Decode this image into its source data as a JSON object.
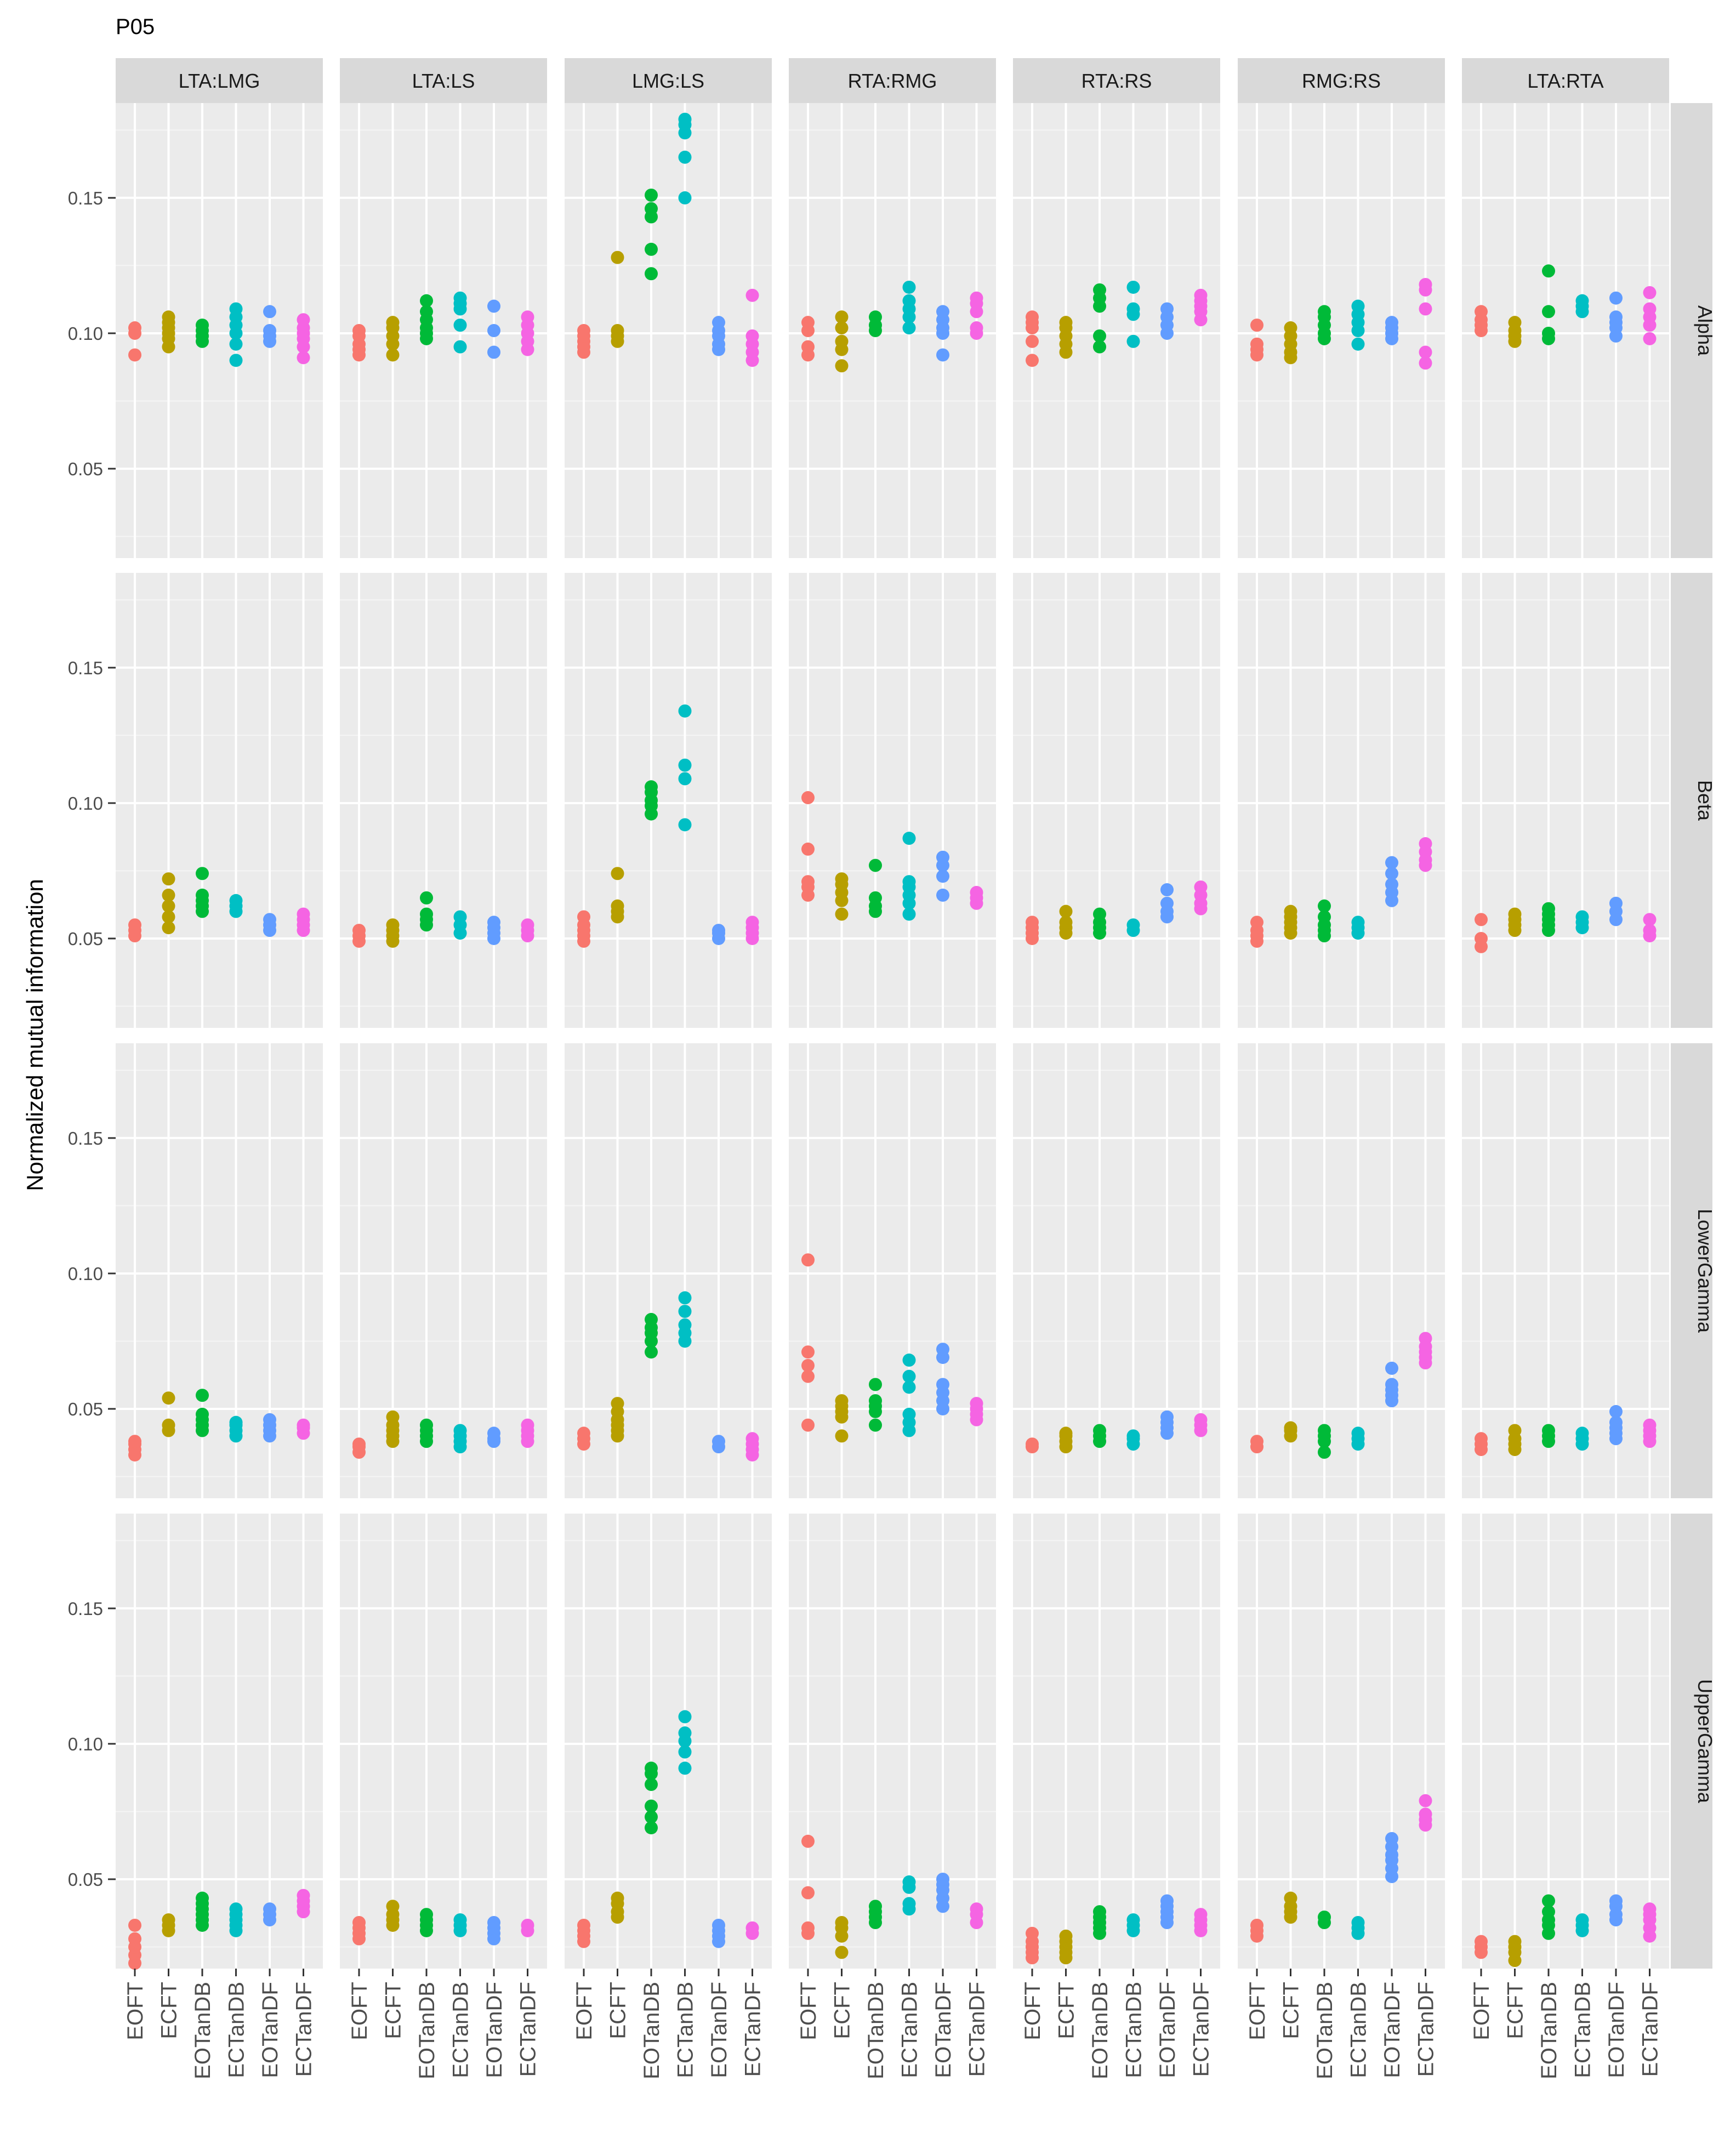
{
  "title": "P05",
  "ylabel": "Normalized mutual information",
  "chart_data": {
    "type": "scatter",
    "title": "P05",
    "xlabel": "",
    "ylabel": "Normalized mutual information",
    "ylim": [
      0.017,
      0.185
    ],
    "y_ticks": [
      "0.05",
      "0.10",
      "0.15"
    ],
    "grid": true,
    "legend": "none",
    "categories": [
      "EOFT",
      "ECFT",
      "EOTanDB",
      "ECTanDB",
      "EOTanDF",
      "ECTanDF"
    ],
    "category_colors": {
      "EOFT": "#F8766D",
      "ECFT": "#B79F00",
      "EOTanDB": "#00BA38",
      "ECTanDB": "#00BFC4",
      "EOTanDF": "#619CFF",
      "ECTanDF": "#F564E3"
    },
    "columns": [
      "LTA:LMG",
      "LTA:LS",
      "LMG:LS",
      "RTA:RMG",
      "RTA:RS",
      "RMG:RS",
      "LTA:RTA"
    ],
    "rows": [
      "Alpha",
      "Beta",
      "LowerGamma",
      "UpperGamma"
    ],
    "panels": {
      "Alpha": {
        "LTA:LMG": [
          [
            0.092,
            0.1,
            0.102
          ],
          [
            0.095,
            0.098,
            0.1,
            0.102,
            0.104,
            0.106
          ],
          [
            0.097,
            0.099,
            0.101,
            0.103
          ],
          [
            0.09,
            0.096,
            0.1,
            0.103,
            0.106,
            0.109
          ],
          [
            0.097,
            0.099,
            0.101,
            0.108
          ],
          [
            0.091,
            0.095,
            0.098,
            0.1,
            0.102,
            0.105
          ]
        ],
        "LTA:LS": [
          [
            0.092,
            0.094,
            0.096,
            0.099,
            0.101
          ],
          [
            0.092,
            0.096,
            0.099,
            0.102,
            0.104
          ],
          [
            0.098,
            0.1,
            0.102,
            0.105,
            0.108,
            0.112
          ],
          [
            0.095,
            0.103,
            0.109,
            0.111,
            0.113
          ],
          [
            0.093,
            0.101,
            0.11
          ],
          [
            0.094,
            0.097,
            0.1,
            0.103,
            0.106
          ]
        ],
        "LMG:LS": [
          [
            0.093,
            0.095,
            0.097,
            0.099,
            0.101
          ],
          [
            0.097,
            0.099,
            0.101,
            0.128
          ],
          [
            0.122,
            0.131,
            0.143,
            0.146,
            0.151
          ],
          [
            0.15,
            0.165,
            0.174,
            0.177,
            0.179
          ],
          [
            0.094,
            0.096,
            0.099,
            0.101,
            0.104
          ],
          [
            0.09,
            0.093,
            0.096,
            0.099,
            0.114
          ]
        ],
        "RTA:RMG": [
          [
            0.092,
            0.095,
            0.101,
            0.104
          ],
          [
            0.088,
            0.094,
            0.097,
            0.102,
            0.106
          ],
          [
            0.101,
            0.103,
            0.106
          ],
          [
            0.102,
            0.106,
            0.109,
            0.112,
            0.117
          ],
          [
            0.092,
            0.1,
            0.102,
            0.105,
            0.108
          ],
          [
            0.1,
            0.102,
            0.108,
            0.111,
            0.113
          ]
        ],
        "RTA:RS": [
          [
            0.09,
            0.097,
            0.102,
            0.104,
            0.106
          ],
          [
            0.093,
            0.096,
            0.099,
            0.102,
            0.104
          ],
          [
            0.095,
            0.099,
            0.11,
            0.113,
            0.116
          ],
          [
            0.097,
            0.107,
            0.109,
            0.117
          ],
          [
            0.1,
            0.103,
            0.106,
            0.109
          ],
          [
            0.105,
            0.108,
            0.11,
            0.112,
            0.114
          ]
        ],
        "RMG:RS": [
          [
            0.092,
            0.094,
            0.096,
            0.103
          ],
          [
            0.091,
            0.093,
            0.096,
            0.099,
            0.102
          ],
          [
            0.098,
            0.1,
            0.103,
            0.106,
            0.108
          ],
          [
            0.096,
            0.101,
            0.104,
            0.107,
            0.11
          ],
          [
            0.098,
            0.1,
            0.102,
            0.104
          ],
          [
            0.089,
            0.093,
            0.109,
            0.116,
            0.118
          ]
        ],
        "LTA:RTA": [
          [
            0.101,
            0.103,
            0.105,
            0.108
          ],
          [
            0.097,
            0.099,
            0.101,
            0.104
          ],
          [
            0.098,
            0.1,
            0.108,
            0.123
          ],
          [
            0.108,
            0.11,
            0.112
          ],
          [
            0.099,
            0.102,
            0.104,
            0.106,
            0.113
          ],
          [
            0.098,
            0.103,
            0.106,
            0.109,
            0.115
          ]
        ]
      },
      "Beta": {
        "LTA:LMG": [
          [
            0.051,
            0.053,
            0.055
          ],
          [
            0.054,
            0.058,
            0.062,
            0.066,
            0.072
          ],
          [
            0.06,
            0.062,
            0.064,
            0.066,
            0.074
          ],
          [
            0.06,
            0.062,
            0.064
          ],
          [
            0.053,
            0.055,
            0.057
          ],
          [
            0.053,
            0.055,
            0.057,
            0.059
          ]
        ],
        "LTA:LS": [
          [
            0.049,
            0.051,
            0.053
          ],
          [
            0.049,
            0.051,
            0.053,
            0.055
          ],
          [
            0.055,
            0.057,
            0.059,
            0.065
          ],
          [
            0.052,
            0.055,
            0.058
          ],
          [
            0.05,
            0.052,
            0.054,
            0.056
          ],
          [
            0.051,
            0.053,
            0.055
          ]
        ],
        "LMG:LS": [
          [
            0.049,
            0.051,
            0.053,
            0.055,
            0.058
          ],
          [
            0.058,
            0.06,
            0.062,
            0.074
          ],
          [
            0.096,
            0.099,
            0.101,
            0.104,
            0.106
          ],
          [
            0.092,
            0.109,
            0.114,
            0.134
          ],
          [
            0.05,
            0.052,
            0.053
          ],
          [
            0.05,
            0.052,
            0.054,
            0.056
          ]
        ],
        "RTA:RMG": [
          [
            0.066,
            0.069,
            0.071,
            0.083,
            0.102
          ],
          [
            0.059,
            0.064,
            0.067,
            0.07,
            0.072
          ],
          [
            0.06,
            0.062,
            0.065,
            0.077
          ],
          [
            0.059,
            0.063,
            0.066,
            0.069,
            0.071,
            0.087
          ],
          [
            0.066,
            0.073,
            0.077,
            0.08
          ],
          [
            0.063,
            0.065,
            0.067
          ]
        ],
        "RTA:RS": [
          [
            0.05,
            0.052,
            0.054,
            0.056
          ],
          [
            0.052,
            0.054,
            0.056,
            0.06
          ],
          [
            0.052,
            0.054,
            0.056,
            0.059
          ],
          [
            0.053,
            0.055
          ],
          [
            0.058,
            0.06,
            0.063,
            0.068
          ],
          [
            0.061,
            0.063,
            0.066,
            0.069
          ]
        ],
        "RMG:RS": [
          [
            0.049,
            0.051,
            0.053,
            0.056
          ],
          [
            0.052,
            0.054,
            0.056,
            0.058,
            0.06
          ],
          [
            0.051,
            0.053,
            0.055,
            0.058,
            0.062
          ],
          [
            0.052,
            0.054,
            0.056
          ],
          [
            0.064,
            0.067,
            0.07,
            0.074,
            0.078
          ],
          [
            0.077,
            0.079,
            0.082,
            0.085
          ]
        ],
        "LTA:RTA": [
          [
            0.047,
            0.05,
            0.057
          ],
          [
            0.053,
            0.055,
            0.057,
            0.059
          ],
          [
            0.053,
            0.055,
            0.057,
            0.059,
            0.061
          ],
          [
            0.054,
            0.056,
            0.058
          ],
          [
            0.057,
            0.06,
            0.063
          ],
          [
            0.051,
            0.053,
            0.057
          ]
        ]
      },
      "LowerGamma": {
        "LTA:LMG": [
          [
            0.033,
            0.035,
            0.037,
            0.038
          ],
          [
            0.042,
            0.044,
            0.054
          ],
          [
            0.042,
            0.044,
            0.046,
            0.048,
            0.055
          ],
          [
            0.04,
            0.042,
            0.044,
            0.045
          ],
          [
            0.04,
            0.042,
            0.044,
            0.046
          ],
          [
            0.041,
            0.043,
            0.044
          ]
        ],
        "LTA:LS": [
          [
            0.034,
            0.036,
            0.037
          ],
          [
            0.038,
            0.04,
            0.042,
            0.044,
            0.047
          ],
          [
            0.038,
            0.04,
            0.042,
            0.044
          ],
          [
            0.036,
            0.038,
            0.04,
            0.042
          ],
          [
            0.038,
            0.039,
            0.041
          ],
          [
            0.038,
            0.04,
            0.042,
            0.044
          ]
        ],
        "LMG:LS": [
          [
            0.037,
            0.039,
            0.041
          ],
          [
            0.04,
            0.042,
            0.044,
            0.046,
            0.049,
            0.052
          ],
          [
            0.071,
            0.075,
            0.078,
            0.08,
            0.083
          ],
          [
            0.075,
            0.078,
            0.081,
            0.086,
            0.091
          ],
          [
            0.036,
            0.038
          ],
          [
            0.033,
            0.035,
            0.037,
            0.039
          ]
        ],
        "RTA:RMG": [
          [
            0.044,
            0.062,
            0.066,
            0.071,
            0.105
          ],
          [
            0.04,
            0.047,
            0.049,
            0.051,
            0.053
          ],
          [
            0.044,
            0.049,
            0.051,
            0.053,
            0.059
          ],
          [
            0.042,
            0.045,
            0.048,
            0.058,
            0.062,
            0.068
          ],
          [
            0.05,
            0.053,
            0.056,
            0.059,
            0.069,
            0.072
          ],
          [
            0.046,
            0.048,
            0.05,
            0.052
          ]
        ],
        "RTA:RS": [
          [
            0.036,
            0.037
          ],
          [
            0.036,
            0.038,
            0.04,
            0.041
          ],
          [
            0.038,
            0.04,
            0.042
          ],
          [
            0.037,
            0.039,
            0.04
          ],
          [
            0.041,
            0.043,
            0.045,
            0.047
          ],
          [
            0.042,
            0.044,
            0.046
          ]
        ],
        "RMG:RS": [
          [
            0.036,
            0.038
          ],
          [
            0.04,
            0.042,
            0.043
          ],
          [
            0.034,
            0.038,
            0.04,
            0.042
          ],
          [
            0.037,
            0.039,
            0.041
          ],
          [
            0.053,
            0.055,
            0.057,
            0.059,
            0.065
          ],
          [
            0.067,
            0.069,
            0.071,
            0.073,
            0.076
          ]
        ],
        "LTA:RTA": [
          [
            0.035,
            0.037,
            0.039
          ],
          [
            0.035,
            0.037,
            0.039,
            0.042
          ],
          [
            0.038,
            0.04,
            0.042
          ],
          [
            0.037,
            0.039,
            0.041
          ],
          [
            0.039,
            0.041,
            0.043,
            0.045,
            0.049
          ],
          [
            0.038,
            0.04,
            0.042,
            0.044
          ]
        ]
      },
      "UpperGamma": {
        "LTA:LMG": [
          [
            0.019,
            0.022,
            0.025,
            0.028,
            0.033
          ],
          [
            0.031,
            0.033,
            0.035
          ],
          [
            0.033,
            0.035,
            0.037,
            0.039,
            0.041,
            0.043
          ],
          [
            0.031,
            0.033,
            0.035,
            0.037,
            0.039
          ],
          [
            0.035,
            0.037,
            0.039
          ],
          [
            0.038,
            0.04,
            0.042,
            0.044
          ]
        ],
        "LTA:LS": [
          [
            0.028,
            0.03,
            0.032,
            0.034
          ],
          [
            0.033,
            0.035,
            0.037,
            0.04
          ],
          [
            0.031,
            0.033,
            0.035,
            0.037
          ],
          [
            0.031,
            0.033,
            0.035
          ],
          [
            0.028,
            0.03,
            0.032,
            0.034
          ],
          [
            0.031,
            0.033
          ]
        ],
        "LMG:LS": [
          [
            0.027,
            0.029,
            0.031,
            0.033
          ],
          [
            0.036,
            0.038,
            0.041,
            0.043
          ],
          [
            0.069,
            0.073,
            0.077,
            0.085,
            0.089,
            0.091
          ],
          [
            0.091,
            0.097,
            0.101,
            0.104,
            0.11
          ],
          [
            0.027,
            0.029,
            0.031,
            0.033
          ],
          [
            0.03,
            0.032
          ]
        ],
        "RTA:RMG": [
          [
            0.03,
            0.032,
            0.045,
            0.064
          ],
          [
            0.023,
            0.029,
            0.032,
            0.034
          ],
          [
            0.034,
            0.036,
            0.038,
            0.04
          ],
          [
            0.039,
            0.041,
            0.047,
            0.049
          ],
          [
            0.04,
            0.043,
            0.046,
            0.048,
            0.05
          ],
          [
            0.034,
            0.037,
            0.039
          ]
        ],
        "RTA:RS": [
          [
            0.021,
            0.023,
            0.025,
            0.027,
            0.03
          ],
          [
            0.021,
            0.023,
            0.025,
            0.027,
            0.029
          ],
          [
            0.03,
            0.032,
            0.034,
            0.036,
            0.038
          ],
          [
            0.031,
            0.033,
            0.035
          ],
          [
            0.034,
            0.036,
            0.038,
            0.04,
            0.042
          ],
          [
            0.031,
            0.033,
            0.035,
            0.037
          ]
        ],
        "RMG:RS": [
          [
            0.029,
            0.031,
            0.033
          ],
          [
            0.036,
            0.038,
            0.04,
            0.043
          ],
          [
            0.034,
            0.036
          ],
          [
            0.03,
            0.032,
            0.034
          ],
          [
            0.051,
            0.054,
            0.057,
            0.059,
            0.062,
            0.065
          ],
          [
            0.07,
            0.072,
            0.074,
            0.079
          ]
        ],
        "LTA:RTA": [
          [
            0.023,
            0.025,
            0.027
          ],
          [
            0.02,
            0.023,
            0.025,
            0.027
          ],
          [
            0.03,
            0.033,
            0.035,
            0.038,
            0.042
          ],
          [
            0.031,
            0.033,
            0.035
          ],
          [
            0.035,
            0.037,
            0.04,
            0.042
          ],
          [
            0.029,
            0.032,
            0.035,
            0.037,
            0.039
          ]
        ]
      }
    }
  }
}
